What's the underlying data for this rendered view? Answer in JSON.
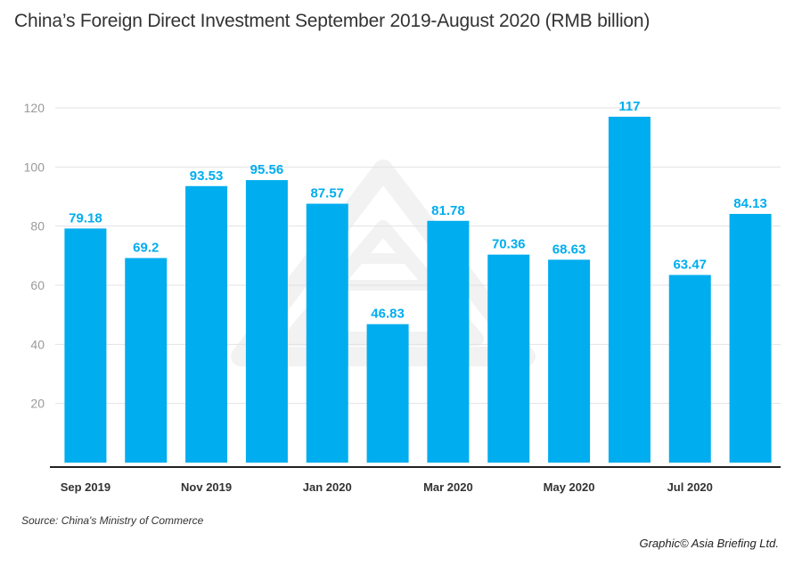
{
  "chart_data": {
    "type": "bar",
    "title": "China’s Foreign Direct Investment September 2019-August 2020 (RMB billion)",
    "xlabel": "",
    "ylabel": "",
    "ylim": [
      0,
      120
    ],
    "yticks": [
      20,
      40,
      60,
      80,
      100,
      120
    ],
    "grid": true,
    "categories": [
      "Sep 2019",
      "Oct 2019",
      "Nov 2019",
      "Dec 2019",
      "Jan 2020",
      "Feb 2020",
      "Mar 2020",
      "Apr 2020",
      "May 2020",
      "Jun 2020",
      "Jul 2020",
      "Aug 2020"
    ],
    "visible_category_labels": [
      "Sep 2019",
      "",
      "Nov 2019",
      "",
      "Jan 2020",
      "",
      "Mar 2020",
      "",
      "May 2020",
      "",
      "Jul 2020",
      ""
    ],
    "values": [
      79.18,
      69.2,
      93.53,
      95.56,
      87.57,
      46.83,
      81.78,
      70.36,
      68.63,
      117,
      63.47,
      84.13
    ],
    "data_labels": [
      "79.18",
      "69.2",
      "93.53",
      "95.56",
      "87.57",
      "46.83",
      "81.78",
      "70.36",
      "68.63",
      "117",
      "63.47",
      "84.13"
    ],
    "colors": {
      "bar": "#00adef",
      "label": "#00adef",
      "grid": "#e3e3e3",
      "axis": "#222222",
      "watermark": "#f2f2f2"
    }
  },
  "footer": {
    "source": "Source: China's Ministry of Commerce",
    "credit": "Graphic© Asia Briefing Ltd."
  }
}
